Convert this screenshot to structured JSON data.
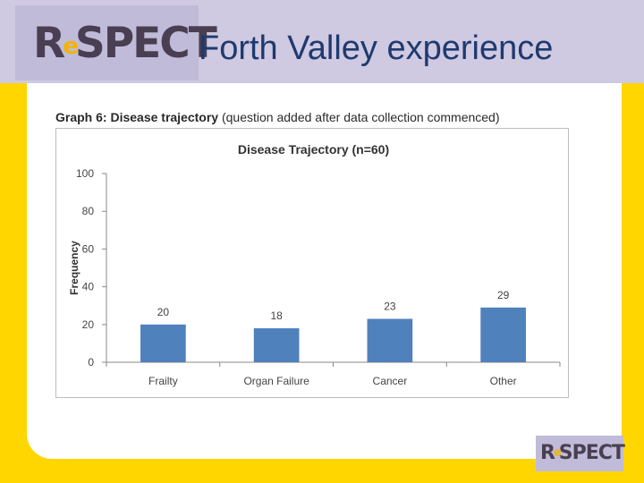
{
  "header": {
    "logo": {
      "prefix": "R",
      "mark": "e",
      "suffix": "SPECT"
    },
    "title": "Forth Valley experience"
  },
  "caption": {
    "bold": "Graph 6: Disease trajectory",
    "rest": " (question added after data collection commenced)"
  },
  "chart_data": {
    "type": "bar",
    "title": "Disease Trajectory (n=60)",
    "xlabel": "",
    "ylabel": "Frequency",
    "categories": [
      "Frailty",
      "Organ Failure",
      "Cancer",
      "Other"
    ],
    "values": [
      20,
      18,
      23,
      29
    ],
    "data_labels": [
      "20",
      "18",
      "23",
      "29"
    ],
    "ylim": [
      0,
      100
    ],
    "yticks": [
      0,
      20,
      40,
      60,
      80,
      100
    ],
    "grid": false,
    "legend": "none",
    "bar_color": "#4f81bd"
  },
  "footer_logo": {
    "prefix": "R",
    "mark": "e",
    "suffix": "SPECT"
  },
  "colors": {
    "background": "#ffd600",
    "header": "#cfc9e2",
    "title": "#1f3a6e"
  }
}
